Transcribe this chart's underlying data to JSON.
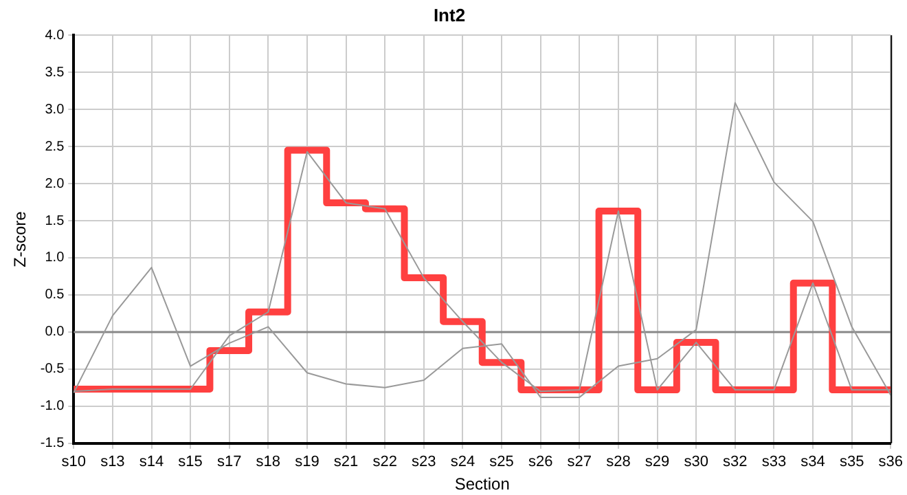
{
  "chart_data": {
    "type": "line",
    "title": "Int2",
    "xlabel": "Section",
    "ylabel": "Z-score",
    "categories": [
      "s10",
      "s13",
      "s14",
      "s15",
      "s17",
      "s18",
      "s19",
      "s21",
      "s22",
      "s23",
      "s24",
      "s25",
      "s26",
      "s27",
      "s28",
      "s29",
      "s30",
      "s32",
      "s33",
      "s34",
      "s35",
      "s36"
    ],
    "series": [
      {
        "color": "#999999",
        "values": [
          -0.82,
          0.22,
          0.87,
          -0.46,
          -0.15,
          0.07,
          -0.55,
          -0.7,
          -0.75,
          -0.65,
          -0.22,
          -0.16,
          -0.88,
          -0.88,
          -0.46,
          -0.36,
          0.03,
          3.09,
          2.02,
          1.49,
          0.07,
          -0.85
        ]
      },
      {
        "color": "#999999",
        "values": [
          -0.8,
          -0.77,
          -0.77,
          -0.77,
          -0.05,
          0.27,
          2.43,
          1.74,
          1.66,
          0.73,
          0.14,
          -0.41,
          -0.8,
          -0.78,
          1.63,
          -0.78,
          -0.14,
          -0.78,
          -0.78,
          0.66,
          -0.78,
          -0.78
        ]
      },
      {
        "type": "step",
        "color": "#ff4040",
        "values": [
          -0.77,
          -0.77,
          -0.77,
          -0.77,
          -0.25,
          0.27,
          2.45,
          1.74,
          1.66,
          0.73,
          0.14,
          -0.41,
          -0.78,
          -0.78,
          1.63,
          -0.78,
          -0.14,
          -0.78,
          -0.78,
          0.66,
          -0.78,
          -0.78
        ]
      }
    ],
    "ylim": [
      -1.5,
      4
    ],
    "yticks": [
      {
        "value": -1.5,
        "label": "-1.5"
      },
      {
        "value": -1,
        "label": "-1.0"
      },
      {
        "value": -0.5,
        "label": "-0.5"
      },
      {
        "value": 0,
        "label": "0.0"
      },
      {
        "value": 0.5,
        "label": "0.5"
      },
      {
        "value": 1,
        "label": "1.0"
      },
      {
        "value": 1.5,
        "label": "1.5"
      },
      {
        "value": 2,
        "label": "2.0"
      },
      {
        "value": 2.5,
        "label": "2.5"
      },
      {
        "value": 3,
        "label": "3.0"
      },
      {
        "value": 3.5,
        "label": "3.5"
      },
      {
        "value": 4,
        "label": "4.0"
      }
    ],
    "ref_lines": [
      {
        "axis": "y",
        "value": 0,
        "color": "#888888"
      }
    ],
    "grid": true,
    "legend": false,
    "marker": "none",
    "line_style": "solid"
  }
}
